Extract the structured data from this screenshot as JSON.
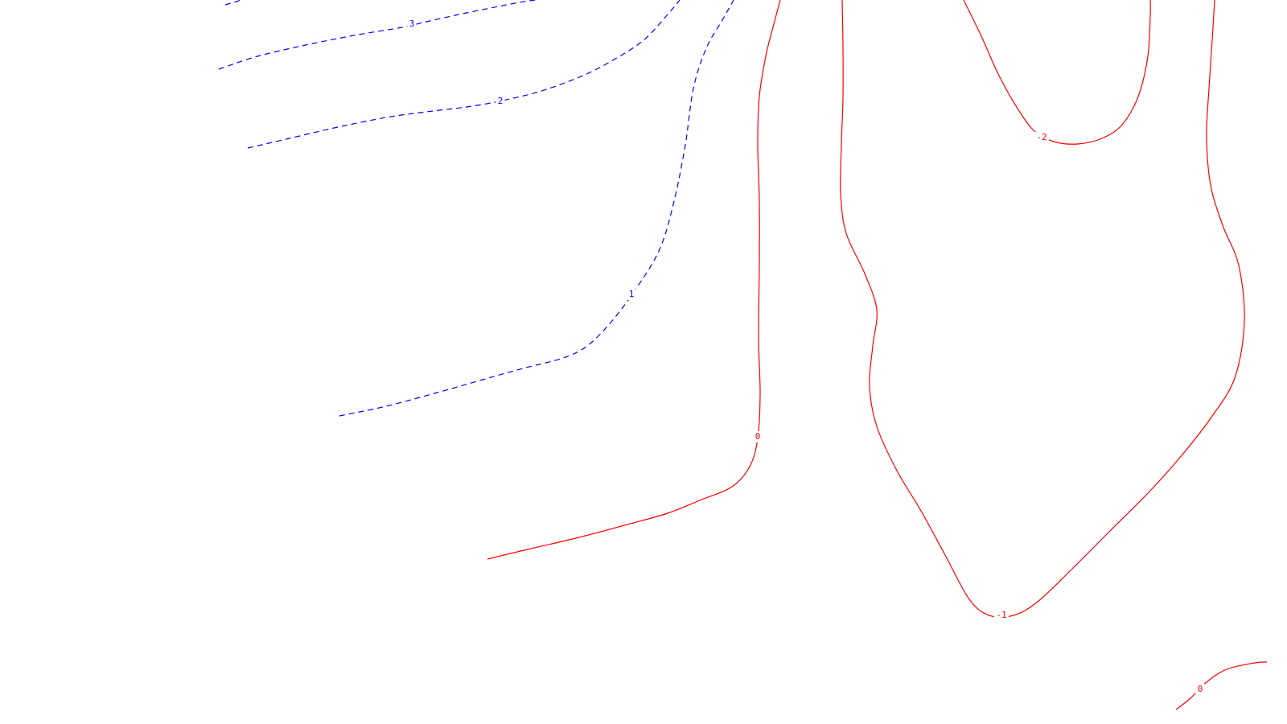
{
  "chart_data": {
    "type": "contour",
    "title": "",
    "xlabel": "",
    "ylabel": "",
    "grid": false,
    "legend": "none",
    "colors": {
      "positive": "#0000ff",
      "negative_or_zero": "#ff0000",
      "background": "#ffffff"
    },
    "positive_line_style": "dashed",
    "negative_or_zero_line_style": "solid",
    "levels": [
      {
        "name": "3",
        "value": 3,
        "label": "3",
        "style": "dashed",
        "color": "#0000ff"
      },
      {
        "name": "2",
        "value": 2,
        "label": "2",
        "style": "dashed",
        "color": "#0000ff"
      },
      {
        "name": "1",
        "value": 1,
        "label": "1",
        "style": "dashed",
        "color": "#0000ff"
      },
      {
        "name": "0-main",
        "value": 0,
        "label": "0",
        "style": "solid",
        "color": "#ff0000"
      },
      {
        "name": "minus1",
        "value": -1,
        "label": "-1",
        "style": "solid",
        "color": "#ff0000"
      },
      {
        "name": "minus2",
        "value": -2,
        "label": "-2",
        "style": "solid",
        "color": "#ff0000"
      },
      {
        "name": "0-corner",
        "value": 0,
        "label": "0",
        "style": "solid",
        "color": "#ff0000"
      }
    ]
  }
}
